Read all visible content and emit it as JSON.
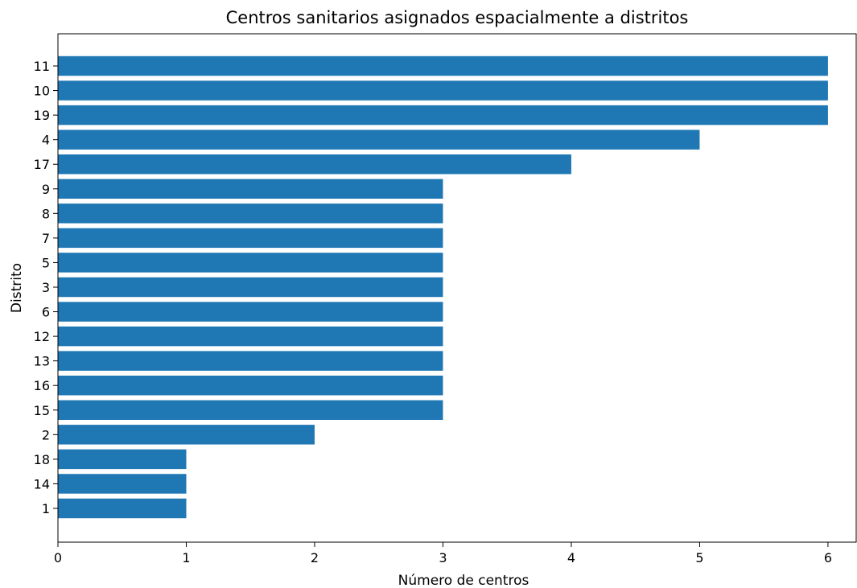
{
  "chart_data": {
    "type": "bar",
    "orientation": "horizontal",
    "title": "Centros sanitarios asignados espacialmente a distritos",
    "xlabel": "Número de centros",
    "ylabel": "Distrito",
    "categories": [
      "11",
      "10",
      "19",
      "4",
      "17",
      "9",
      "8",
      "7",
      "5",
      "3",
      "6",
      "12",
      "13",
      "16",
      "15",
      "2",
      "18",
      "14",
      "1"
    ],
    "values": [
      6,
      6,
      6,
      5,
      4,
      3,
      3,
      3,
      3,
      3,
      3,
      3,
      3,
      3,
      3,
      2,
      1,
      1,
      1
    ],
    "xlim": [
      0,
      6.22
    ],
    "xticks": [
      0,
      1,
      2,
      3,
      4,
      5,
      6
    ],
    "grid": false,
    "colors": {
      "bar": "#1f77b4",
      "axis": "#000000"
    }
  }
}
